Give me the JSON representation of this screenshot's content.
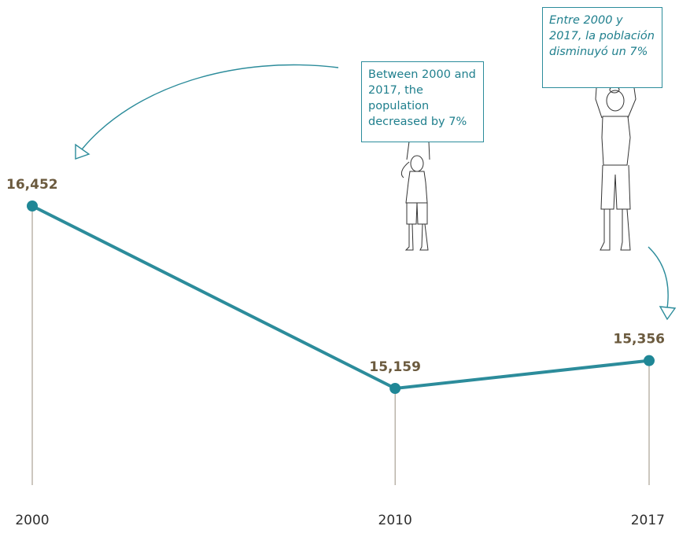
{
  "chart_data": {
    "type": "line",
    "x": [
      "2000",
      "2010",
      "2017"
    ],
    "series": [
      {
        "values": [
          16452,
          15159,
          15356
        ],
        "labels": [
          "16,452",
          "15,159",
          "15,356"
        ]
      }
    ],
    "title": "",
    "xlabel": "",
    "ylabel": "",
    "ylim": [
      14900,
      16600
    ],
    "grid": false,
    "legend": "none",
    "annotations": {
      "english": "Between 2000 and 2017, the population decreased by 7%",
      "spanish": "Entre 2000 y 2017, la población disminuyó un 7%"
    },
    "colors": {
      "line": "#2c8c9b",
      "point": "#1f8796",
      "value_label": "#6b5a3e",
      "drop_line": "#9a8f7f"
    }
  }
}
